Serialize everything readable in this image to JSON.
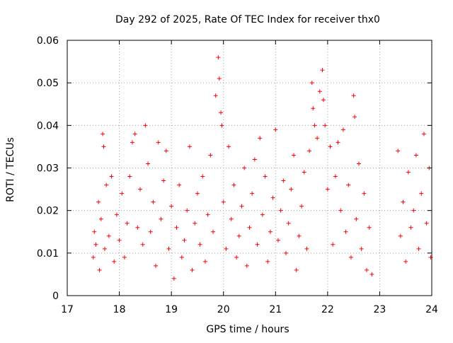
{
  "chart_data": {
    "type": "scatter",
    "title": "Day 292 of 2025, Rate Of TEC Index for receiver thx0",
    "xlabel": "GPS time / hours",
    "ylabel": "ROTI / TECUs",
    "xlim": [
      17,
      24
    ],
    "ylim": [
      0,
      0.06
    ],
    "x_ticks": [
      "17",
      "18",
      "19",
      "20",
      "21",
      "22",
      "23",
      "24"
    ],
    "y_ticks": [
      "0",
      "0.01",
      "0.02",
      "0.03",
      "0.04",
      "0.05",
      "0.06"
    ],
    "grid": true,
    "grid_style": "dotted",
    "marker": "plus",
    "colors": {
      "points": "#ff0000",
      "axes": "#000000",
      "grid": "#a0a0a0"
    },
    "series": [
      {
        "points": [
          [
            17.5,
            0.009
          ],
          [
            17.52,
            0.015
          ],
          [
            17.55,
            0.012
          ],
          [
            17.6,
            0.022
          ],
          [
            17.62,
            0.006
          ],
          [
            17.65,
            0.018
          ],
          [
            17.68,
            0.038
          ],
          [
            17.7,
            0.035
          ],
          [
            17.72,
            0.011
          ],
          [
            17.75,
            0.026
          ],
          [
            17.8,
            0.014
          ],
          [
            17.85,
            0.028
          ],
          [
            17.9,
            0.008
          ],
          [
            17.95,
            0.019
          ],
          [
            18.0,
            0.013
          ],
          [
            18.05,
            0.024
          ],
          [
            18.1,
            0.009
          ],
          [
            18.15,
            0.017
          ],
          [
            18.2,
            0.028
          ],
          [
            18.25,
            0.036
          ],
          [
            18.3,
            0.038
          ],
          [
            18.35,
            0.016
          ],
          [
            18.4,
            0.025
          ],
          [
            18.45,
            0.012
          ],
          [
            18.5,
            0.04
          ],
          [
            18.55,
            0.031
          ],
          [
            18.6,
            0.015
          ],
          [
            18.65,
            0.022
          ],
          [
            18.7,
            0.007
          ],
          [
            18.75,
            0.036
          ],
          [
            18.8,
            0.018
          ],
          [
            18.85,
            0.027
          ],
          [
            18.9,
            0.034
          ],
          [
            18.95,
            0.011
          ],
          [
            19.0,
            0.021
          ],
          [
            19.05,
            0.004
          ],
          [
            19.1,
            0.016
          ],
          [
            19.15,
            0.026
          ],
          [
            19.2,
            0.009
          ],
          [
            19.25,
            0.013
          ],
          [
            19.3,
            0.02
          ],
          [
            19.35,
            0.035
          ],
          [
            19.4,
            0.006
          ],
          [
            19.45,
            0.017
          ],
          [
            19.5,
            0.024
          ],
          [
            19.55,
            0.012
          ],
          [
            19.6,
            0.028
          ],
          [
            19.65,
            0.008
          ],
          [
            19.7,
            0.019
          ],
          [
            19.75,
            0.033
          ],
          [
            19.8,
            0.015
          ],
          [
            19.85,
            0.047
          ],
          [
            19.9,
            0.056
          ],
          [
            19.92,
            0.051
          ],
          [
            19.95,
            0.043
          ],
          [
            19.97,
            0.04
          ],
          [
            20.0,
            0.022
          ],
          [
            20.05,
            0.011
          ],
          [
            20.1,
            0.035
          ],
          [
            20.15,
            0.018
          ],
          [
            20.2,
            0.026
          ],
          [
            20.25,
            0.009
          ],
          [
            20.3,
            0.014
          ],
          [
            20.35,
            0.021
          ],
          [
            20.4,
            0.03
          ],
          [
            20.45,
            0.007
          ],
          [
            20.5,
            0.016
          ],
          [
            20.55,
            0.024
          ],
          [
            20.6,
            0.032
          ],
          [
            20.65,
            0.012
          ],
          [
            20.7,
            0.037
          ],
          [
            20.75,
            0.019
          ],
          [
            20.8,
            0.028
          ],
          [
            20.85,
            0.008
          ],
          [
            20.9,
            0.015
          ],
          [
            20.95,
            0.023
          ],
          [
            21.0,
            0.039
          ],
          [
            21.05,
            0.013
          ],
          [
            21.1,
            0.02
          ],
          [
            21.15,
            0.027
          ],
          [
            21.2,
            0.01
          ],
          [
            21.25,
            0.017
          ],
          [
            21.3,
            0.025
          ],
          [
            21.35,
            0.033
          ],
          [
            21.4,
            0.006
          ],
          [
            21.45,
            0.014
          ],
          [
            21.5,
            0.021
          ],
          [
            21.55,
            0.029
          ],
          [
            21.6,
            0.011
          ],
          [
            21.65,
            0.034
          ],
          [
            21.7,
            0.05
          ],
          [
            21.72,
            0.044
          ],
          [
            21.75,
            0.04
          ],
          [
            21.8,
            0.037
          ],
          [
            21.85,
            0.048
          ],
          [
            21.9,
            0.053
          ],
          [
            21.92,
            0.046
          ],
          [
            21.95,
            0.04
          ],
          [
            22.0,
            0.025
          ],
          [
            22.05,
            0.035
          ],
          [
            22.1,
            0.012
          ],
          [
            22.15,
            0.028
          ],
          [
            22.2,
            0.036
          ],
          [
            22.25,
            0.02
          ],
          [
            22.3,
            0.039
          ],
          [
            22.35,
            0.015
          ],
          [
            22.4,
            0.026
          ],
          [
            22.45,
            0.009
          ],
          [
            22.5,
            0.047
          ],
          [
            22.52,
            0.042
          ],
          [
            22.55,
            0.018
          ],
          [
            22.6,
            0.031
          ],
          [
            22.65,
            0.011
          ],
          [
            22.7,
            0.024
          ],
          [
            22.75,
            0.006
          ],
          [
            22.8,
            0.016
          ],
          [
            22.85,
            0.005
          ],
          [
            23.35,
            0.034
          ],
          [
            23.4,
            0.014
          ],
          [
            23.45,
            0.022
          ],
          [
            23.5,
            0.008
          ],
          [
            23.55,
            0.029
          ],
          [
            23.6,
            0.016
          ],
          [
            23.65,
            0.02
          ],
          [
            23.7,
            0.033
          ],
          [
            23.75,
            0.011
          ],
          [
            23.8,
            0.024
          ],
          [
            23.85,
            0.038
          ],
          [
            23.9,
            0.017
          ],
          [
            23.95,
            0.03
          ],
          [
            23.98,
            0.009
          ]
        ]
      }
    ]
  }
}
